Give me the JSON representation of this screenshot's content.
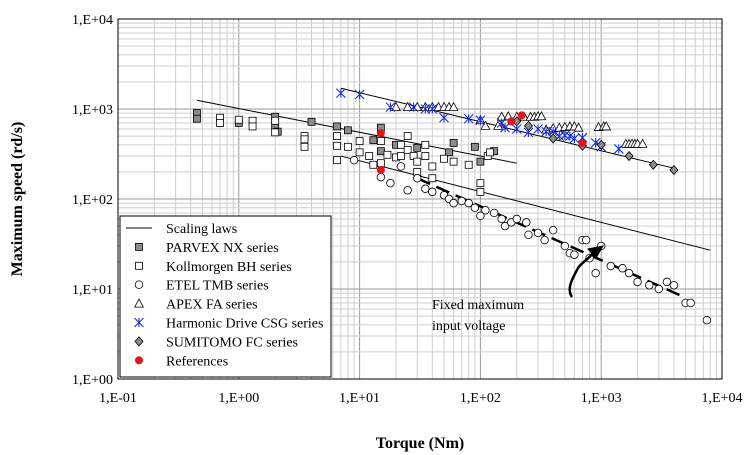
{
  "chart_data": {
    "type": "scatter",
    "xscale": "log",
    "yscale": "log",
    "xlim": [
      0.1,
      10000
    ],
    "ylim": [
      1,
      10000
    ],
    "xlabel": "Torque (Nm)",
    "ylabel": "Maximum speed (rd/s)",
    "grid": true,
    "legend_position": "bottom-left",
    "x_ticks": [
      {
        "value": 0.1,
        "label": "1,E-01"
      },
      {
        "value": 1,
        "label": "1,E+00"
      },
      {
        "value": 10,
        "label": "1,E+01"
      },
      {
        "value": 100,
        "label": "1,E+02"
      },
      {
        "value": 1000,
        "label": "1,E+03"
      },
      {
        "value": 10000,
        "label": "1,E+04"
      }
    ],
    "y_ticks": [
      {
        "value": 1,
        "label": "1,E+00"
      },
      {
        "value": 10,
        "label": "1,E+01"
      },
      {
        "value": 100,
        "label": "1,E+02"
      },
      {
        "value": 1000,
        "label": "1,E+03"
      },
      {
        "value": 10000,
        "label": "1,E+04"
      }
    ],
    "lines": [
      {
        "name": "Scaling laws",
        "points": [
          [
            0.45,
            1250
          ],
          [
            200,
            250
          ]
        ]
      },
      {
        "name": "Scaling laws",
        "points": [
          [
            7,
            1700
          ],
          [
            4000,
            220
          ]
        ]
      },
      {
        "name": "Scaling laws",
        "points": [
          [
            7,
            300
          ],
          [
            8000,
            27
          ]
        ]
      }
    ],
    "dashed_lines": [
      {
        "points": [
          [
            30,
            170
          ],
          [
            5000,
            8
          ]
        ]
      }
    ],
    "series": [
      {
        "name": "PARVEX NX series",
        "marker": "square-gray",
        "points": [
          [
            0.45,
            900
          ],
          [
            0.45,
            780
          ],
          [
            1,
            700
          ],
          [
            2,
            820
          ],
          [
            2,
            650
          ],
          [
            2.1,
            560
          ],
          [
            4,
            720
          ],
          [
            6.5,
            640
          ],
          [
            8,
            580
          ],
          [
            15,
            620
          ],
          [
            13,
            450
          ],
          [
            15,
            340
          ],
          [
            20,
            400
          ],
          [
            30,
            370
          ],
          [
            60,
            420
          ],
          [
            90,
            380
          ],
          [
            130,
            340
          ],
          [
            100,
            260
          ],
          [
            55,
            330
          ]
        ]
      },
      {
        "name": "Kollmorgen BH series",
        "marker": "square-white",
        "points": [
          [
            0.7,
            800
          ],
          [
            0.7,
            700
          ],
          [
            1,
            760
          ],
          [
            1.3,
            740
          ],
          [
            1.3,
            640
          ],
          [
            2,
            740
          ],
          [
            2,
            550
          ],
          [
            3.5,
            500
          ],
          [
            3.5,
            460
          ],
          [
            3.5,
            380
          ],
          [
            6.5,
            500
          ],
          [
            6.5,
            390
          ],
          [
            6.5,
            270
          ],
          [
            8,
            380
          ],
          [
            10,
            440
          ],
          [
            10,
            330
          ],
          [
            12,
            300
          ],
          [
            13,
            240
          ],
          [
            15,
            250
          ],
          [
            15,
            440
          ],
          [
            17,
            310
          ],
          [
            20,
            290
          ],
          [
            22,
            400
          ],
          [
            22,
            300
          ],
          [
            25,
            500
          ],
          [
            25,
            350
          ],
          [
            28,
            300
          ],
          [
            30,
            260
          ],
          [
            30,
            200
          ],
          [
            35,
            400
          ],
          [
            35,
            300
          ],
          [
            40,
            230
          ],
          [
            40,
            170
          ],
          [
            50,
            280
          ],
          [
            60,
            260
          ],
          [
            80,
            240
          ],
          [
            100,
            150
          ],
          [
            100,
            120
          ],
          [
            115,
            300
          ],
          [
            120,
            330
          ]
        ]
      },
      {
        "name": "ETEL TMB series",
        "marker": "circle-white",
        "points": [
          [
            9,
            270
          ],
          [
            15,
            175
          ],
          [
            18,
            150
          ],
          [
            22,
            230
          ],
          [
            25,
            125
          ],
          [
            30,
            170
          ],
          [
            35,
            130
          ],
          [
            40,
            120
          ],
          [
            50,
            110
          ],
          [
            55,
            100
          ],
          [
            60,
            90
          ],
          [
            70,
            95
          ],
          [
            80,
            90
          ],
          [
            90,
            80
          ],
          [
            100,
            65
          ],
          [
            110,
            75
          ],
          [
            130,
            70
          ],
          [
            150,
            60
          ],
          [
            160,
            50
          ],
          [
            180,
            55
          ],
          [
            200,
            60
          ],
          [
            240,
            55
          ],
          [
            250,
            40
          ],
          [
            300,
            42
          ],
          [
            340,
            35
          ],
          [
            400,
            45
          ],
          [
            500,
            30
          ],
          [
            550,
            25
          ],
          [
            600,
            24
          ],
          [
            700,
            35
          ],
          [
            750,
            35
          ],
          [
            800,
            22
          ],
          [
            900,
            15
          ],
          [
            1000,
            30
          ],
          [
            1200,
            18
          ],
          [
            1500,
            17
          ],
          [
            1700,
            15
          ],
          [
            2000,
            12
          ],
          [
            2500,
            11
          ],
          [
            3000,
            10
          ],
          [
            3500,
            12
          ],
          [
            4000,
            11
          ],
          [
            5000,
            7
          ],
          [
            5500,
            7
          ],
          [
            7500,
            4.5
          ]
        ]
      },
      {
        "name": "APEX FA series",
        "marker": "triangle-white",
        "points": [
          [
            20,
            1050
          ],
          [
            25,
            1050
          ],
          [
            30,
            1050
          ],
          [
            35,
            1050
          ],
          [
            40,
            1050
          ],
          [
            45,
            1050
          ],
          [
            50,
            1050
          ],
          [
            55,
            1050
          ],
          [
            60,
            1050
          ],
          [
            100,
            750
          ],
          [
            110,
            650
          ],
          [
            140,
            650
          ],
          [
            150,
            820
          ],
          [
            170,
            830
          ],
          [
            200,
            820
          ],
          [
            230,
            820
          ],
          [
            260,
            820
          ],
          [
            280,
            820
          ],
          [
            300,
            830
          ],
          [
            320,
            830
          ],
          [
            350,
            590
          ],
          [
            400,
            610
          ],
          [
            450,
            620
          ],
          [
            500,
            630
          ],
          [
            550,
            640
          ],
          [
            600,
            640
          ],
          [
            650,
            620
          ],
          [
            950,
            630
          ],
          [
            1050,
            640
          ],
          [
            1100,
            640
          ],
          [
            1600,
            410
          ],
          [
            1700,
            410
          ],
          [
            1800,
            410
          ],
          [
            1900,
            410
          ],
          [
            2000,
            410
          ],
          [
            2200,
            410
          ]
        ]
      },
      {
        "name": "Harmonic Drive CSG series",
        "marker": "asterisk-blue",
        "points": [
          [
            7,
            1500
          ],
          [
            10,
            1450
          ],
          [
            18,
            1050
          ],
          [
            28,
            1050
          ],
          [
            35,
            1000
          ],
          [
            40,
            1000
          ],
          [
            50,
            800
          ],
          [
            80,
            780
          ],
          [
            100,
            750
          ],
          [
            150,
            700
          ],
          [
            160,
            620
          ],
          [
            200,
            600
          ],
          [
            250,
            550
          ],
          [
            300,
            600
          ],
          [
            350,
            560
          ],
          [
            400,
            560
          ],
          [
            450,
            500
          ],
          [
            500,
            510
          ],
          [
            550,
            500
          ],
          [
            600,
            470
          ],
          [
            700,
            480
          ],
          [
            900,
            420
          ],
          [
            1000,
            380
          ],
          [
            1400,
            360
          ]
        ]
      },
      {
        "name": "SUMITOMO FC series",
        "marker": "diamond-gray",
        "points": [
          [
            200,
            730
          ],
          [
            250,
            650
          ],
          [
            400,
            470
          ],
          [
            700,
            390
          ],
          [
            1000,
            400
          ],
          [
            1700,
            300
          ],
          [
            2700,
            240
          ],
          [
            4000,
            210
          ]
        ]
      },
      {
        "name": "References",
        "marker": "circle-red",
        "points": [
          [
            15,
            540
          ],
          [
            15,
            210
          ],
          [
            180,
            730
          ],
          [
            220,
            850
          ],
          [
            700,
            420
          ]
        ]
      }
    ],
    "annotations": [
      {
        "text_lines": [
          "Fixed maximum",
          "input voltage"
        ]
      }
    ],
    "legend_extra": {
      "name": "Scaling laws",
      "marker": "line"
    }
  }
}
